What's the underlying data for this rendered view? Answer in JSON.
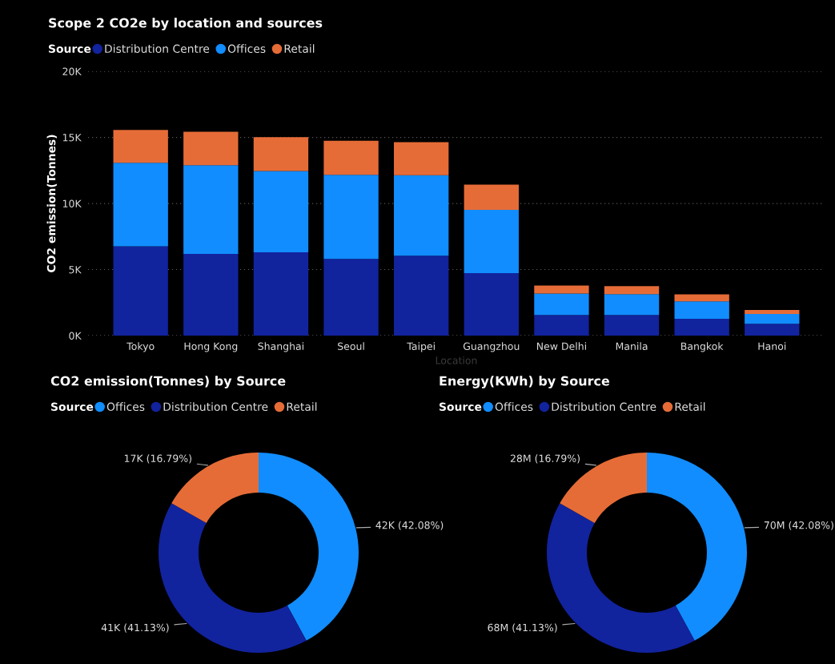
{
  "chart_data": [
    {
      "type": "bar",
      "title": "Scope 2 CO2e by location and sources",
      "legend_title": "Source",
      "legend": "top left",
      "stacked": true,
      "grid": "y",
      "xlabel": "Location",
      "ylabel": "CO2 emission(Tonnes)",
      "categories": [
        "Tokyo",
        "Hong Kong",
        "Shanghai",
        "Seoul",
        "Taipei",
        "Guangzhou",
        "New Delhi",
        "Manila",
        "Bangkok",
        "Hanoi"
      ],
      "series": [
        {
          "name": "Distribution Centre",
          "color": "#12239e",
          "values": [
            6760,
            6180,
            6310,
            5810,
            6040,
            4720,
            1560,
            1560,
            1280,
            890
          ]
        },
        {
          "name": "Offices",
          "color": "#118dff",
          "values": [
            6310,
            6710,
            6150,
            6360,
            6090,
            4790,
            1620,
            1580,
            1310,
            750
          ]
        },
        {
          "name": "Retail",
          "color": "#e66c37",
          "values": [
            2490,
            2540,
            2560,
            2570,
            2500,
            1910,
            610,
            610,
            530,
            300
          ]
        }
      ],
      "ylim": [
        0,
        20000
      ],
      "yticks": [
        {
          "value": 0,
          "label": "0K"
        },
        {
          "value": 5000,
          "label": "5K"
        },
        {
          "value": 10000,
          "label": "10K"
        },
        {
          "value": 15000,
          "label": "15K"
        },
        {
          "value": 20000,
          "label": "20K"
        }
      ]
    },
    {
      "type": "donut",
      "title": "CO2 emission(Tonnes) by Source",
      "legend_title": "Source",
      "legend": "top left",
      "categories": [
        "Offices",
        "Distribution Centre",
        "Retail"
      ],
      "values": [
        42.08,
        41.13,
        16.79
      ],
      "colors": [
        "#118dff",
        "#12239e",
        "#e66c37"
      ],
      "value_labels": [
        "42K (42.08%)",
        "41K (41.13%)",
        "17K (16.79%)"
      ]
    },
    {
      "type": "donut",
      "title": "Energy(KWh) by Source",
      "legend_title": "Source",
      "legend": "top left",
      "categories": [
        "Offices",
        "Distribution Centre",
        "Retail"
      ],
      "values": [
        42.08,
        41.13,
        16.79
      ],
      "colors": [
        "#118dff",
        "#12239e",
        "#e66c37"
      ],
      "value_labels": [
        "70M (42.08%)",
        "68M (41.13%)",
        "28M (16.79%)"
      ]
    }
  ]
}
